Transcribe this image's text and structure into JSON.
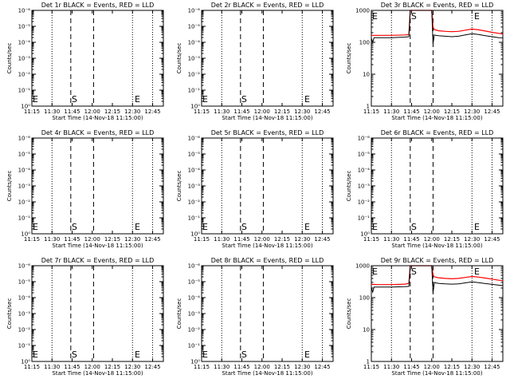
{
  "figure": {
    "xlabel": "Start Time (14-Nov-18 11:15:00)",
    "ylabel": "Counts/sec",
    "x_tick_labels": [
      "11:15",
      "11:30",
      "11:45",
      "12:00",
      "12:15",
      "12:30",
      "12:45"
    ],
    "y_tick_labels_empty": [
      "10⁰",
      "10⁻¹",
      "10⁻²",
      "10⁻³",
      "10⁻⁴",
      "10⁻⁵",
      "10⁻⁶"
    ],
    "y_tick_labels_data": [
      "1",
      "10",
      "100",
      "1000"
    ],
    "line_colors": {
      "events": "#000000",
      "lld": "#ff0000"
    }
  },
  "chart_data": [
    {
      "type": "line",
      "title": "Det 1r BLACK = Events, RED = LLD",
      "yscale": "log",
      "ylim": [
        1,
        1000000
      ],
      "xlim": [
        "11:15",
        "12:53"
      ],
      "markers": [
        {
          "label": "E",
          "time": "11:15"
        },
        {
          "label": "S",
          "time": "11:44"
        },
        {
          "label": "E",
          "time": "12:31"
        }
      ],
      "series": []
    },
    {
      "type": "line",
      "title": "Det 2r BLACK = Events, RED = LLD",
      "yscale": "log",
      "ylim": [
        1,
        1000000
      ],
      "xlim": [
        "11:15",
        "12:53"
      ],
      "markers": [
        {
          "label": "E",
          "time": "11:15"
        },
        {
          "label": "S",
          "time": "11:44"
        },
        {
          "label": "E",
          "time": "12:31"
        }
      ],
      "series": []
    },
    {
      "type": "line",
      "title": "Det 3r BLACK = Events, RED = LLD",
      "yscale": "log",
      "ylim": [
        1,
        1000
      ],
      "xlim": [
        "11:15",
        "12:53"
      ],
      "markers": [
        {
          "label": "E",
          "time": "11:15"
        },
        {
          "label": "S",
          "time": "11:44"
        },
        {
          "label": "E",
          "time": "12:31"
        }
      ],
      "series": [
        {
          "color": "red",
          "x": [
            "11:15",
            "11:20",
            "11:30",
            "11:40",
            "11:43",
            "11:44",
            "11:45",
            "12:00",
            "12:01",
            "12:02",
            "12:05",
            "12:10",
            "12:15",
            "12:20",
            "12:25",
            "12:30",
            "12:35",
            "12:40",
            "12:45",
            "12:50",
            "12:53"
          ],
          "y": [
            165,
            165,
            165,
            170,
            175,
            1000,
            1000,
            1000,
            300,
            250,
            230,
            220,
            215,
            220,
            240,
            260,
            245,
            225,
            205,
            190,
            182
          ]
        },
        {
          "color": "black",
          "x": [
            "11:15",
            "11:16",
            "11:17",
            "11:20",
            "11:30",
            "11:40",
            "11:43",
            "11:44",
            "11:45",
            "12:00",
            "12:01",
            "12:02",
            "12:03",
            "12:05",
            "12:10",
            "12:15",
            "12:20",
            "12:25",
            "12:30",
            "12:35",
            "12:40",
            "12:45",
            "12:50",
            "12:53"
          ],
          "y": [
            135,
            100,
            140,
            140,
            140,
            145,
            150,
            1000,
            1000,
            1000,
            90,
            170,
            165,
            160,
            155,
            150,
            155,
            170,
            185,
            175,
            160,
            150,
            140,
            138
          ]
        }
      ]
    },
    {
      "type": "line",
      "title": "Det 4r BLACK = Events, RED = LLD",
      "yscale": "log",
      "ylim": [
        1,
        1000000
      ],
      "xlim": [
        "11:15",
        "12:53"
      ],
      "markers": [
        {
          "label": "E",
          "time": "11:15"
        },
        {
          "label": "S",
          "time": "11:44"
        },
        {
          "label": "E",
          "time": "12:31"
        }
      ],
      "series": []
    },
    {
      "type": "line",
      "title": "Det 5r BLACK = Events, RED = LLD",
      "yscale": "log",
      "ylim": [
        1,
        1000000
      ],
      "xlim": [
        "11:15",
        "12:53"
      ],
      "markers": [
        {
          "label": "E",
          "time": "11:15"
        },
        {
          "label": "S",
          "time": "11:44"
        },
        {
          "label": "E",
          "time": "12:31"
        }
      ],
      "series": []
    },
    {
      "type": "line",
      "title": "Det 6r BLACK = Events, RED = LLD",
      "yscale": "log",
      "ylim": [
        1,
        1000000
      ],
      "xlim": [
        "11:15",
        "12:53"
      ],
      "markers": [
        {
          "label": "E",
          "time": "11:15"
        },
        {
          "label": "S",
          "time": "11:44"
        },
        {
          "label": "E",
          "time": "12:31"
        }
      ],
      "series": []
    },
    {
      "type": "line",
      "title": "Det 7r BLACK = Events, RED = LLD",
      "yscale": "log",
      "ylim": [
        1,
        1000000
      ],
      "xlim": [
        "11:15",
        "12:53"
      ],
      "markers": [
        {
          "label": "E",
          "time": "11:15"
        },
        {
          "label": "S",
          "time": "11:44"
        },
        {
          "label": "E",
          "time": "12:31"
        }
      ],
      "series": []
    },
    {
      "type": "line",
      "title": "Det 8r BLACK = Events, RED = LLD",
      "yscale": "log",
      "ylim": [
        1,
        1000000
      ],
      "xlim": [
        "11:15",
        "12:53"
      ],
      "markers": [
        {
          "label": "E",
          "time": "11:15"
        },
        {
          "label": "S",
          "time": "11:44"
        },
        {
          "label": "E",
          "time": "12:31"
        }
      ],
      "series": []
    },
    {
      "type": "line",
      "title": "Det 9r BLACK = Events, RED = LLD",
      "yscale": "log",
      "ylim": [
        1,
        1000
      ],
      "xlim": [
        "11:15",
        "12:53"
      ],
      "markers": [
        {
          "label": "E",
          "time": "11:15"
        },
        {
          "label": "S",
          "time": "11:44"
        },
        {
          "label": "E",
          "time": "12:31"
        }
      ],
      "series": [
        {
          "color": "red",
          "x": [
            "11:15",
            "11:20",
            "11:30",
            "11:40",
            "11:43",
            "11:44",
            "11:45",
            "12:00",
            "12:01",
            "12:02",
            "12:05",
            "12:10",
            "12:15",
            "12:20",
            "12:25",
            "12:30",
            "12:35",
            "12:40",
            "12:45",
            "12:50",
            "12:53"
          ],
          "y": [
            260,
            255,
            255,
            265,
            280,
            1000,
            1000,
            1000,
            520,
            450,
            420,
            400,
            390,
            400,
            430,
            460,
            440,
            410,
            380,
            350,
            340
          ]
        },
        {
          "color": "black",
          "x": [
            "11:15",
            "11:16",
            "11:17",
            "11:20",
            "11:30",
            "11:40",
            "11:43",
            "11:44",
            "11:45",
            "12:00",
            "12:01",
            "12:02",
            "12:03",
            "12:05",
            "12:10",
            "12:15",
            "12:20",
            "12:25",
            "12:30",
            "12:35",
            "12:40",
            "12:45",
            "12:50",
            "12:53"
          ],
          "y": [
            210,
            150,
            215,
            215,
            215,
            220,
            225,
            1000,
            1000,
            1000,
            140,
            300,
            290,
            280,
            270,
            265,
            270,
            290,
            310,
            295,
            275,
            260,
            245,
            240
          ]
        }
      ]
    }
  ]
}
